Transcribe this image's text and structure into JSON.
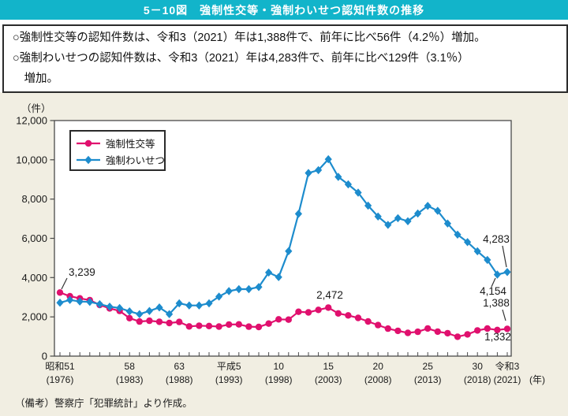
{
  "title": "5－10図　強制性交等・強制わいせつ認知件数の推移",
  "summary": {
    "line1": "○強制性交等の認知件数は、令和3（2021）年は1,388件で、前年に比べ56件（4.2％）増加。",
    "line2": "○強制わいせつの認知件数は、令和3（2021）年は4,283件で、前年に比べ129件（3.1％）",
    "line3": "増加。"
  },
  "note": "（備考）警察庁「犯罪統計」より作成。",
  "colors": {
    "titlebar_bg": "#12b4ca",
    "page_bg": "#f1eee2",
    "plot_bg": "#ffffff",
    "frame": "#4a4a4a",
    "pink": "#e0106e",
    "blue": "#1d8ccd",
    "text": "#1a1a1a"
  },
  "chart_data": {
    "type": "line",
    "title": "強制性交等・強制わいせつ認知件数の推移",
    "unit_label": "（件）",
    "year_unit": "(年)",
    "grid": false,
    "legend_position": "top-left",
    "ylim": [
      0,
      12000
    ],
    "ytick_step": 2000,
    "y_ticks": [
      "0",
      "2,000",
      "4,000",
      "6,000",
      "8,000",
      "10,000",
      "12,000"
    ],
    "x": [
      1976,
      1977,
      1978,
      1979,
      1980,
      1981,
      1982,
      1983,
      1984,
      1985,
      1986,
      1987,
      1988,
      1989,
      1990,
      1991,
      1992,
      1993,
      1994,
      1995,
      1996,
      1997,
      1998,
      1999,
      2000,
      2001,
      2002,
      2003,
      2004,
      2005,
      2006,
      2007,
      2008,
      2009,
      2010,
      2011,
      2012,
      2013,
      2014,
      2015,
      2016,
      2017,
      2018,
      2019,
      2020,
      2021
    ],
    "x_axis_labels": [
      {
        "top": "昭和51",
        "bottom": "(1976)",
        "year": 1976
      },
      {
        "top": "58",
        "bottom": "(1983)",
        "year": 1983
      },
      {
        "top": "63",
        "bottom": "(1988)",
        "year": 1988
      },
      {
        "top": "平成5",
        "bottom": "(1993)",
        "year": 1993
      },
      {
        "top": "10",
        "bottom": "(1998)",
        "year": 1998
      },
      {
        "top": "15",
        "bottom": "(2003)",
        "year": 2003
      },
      {
        "top": "20",
        "bottom": "(2008)",
        "year": 2008
      },
      {
        "top": "25",
        "bottom": "(2013)",
        "year": 2013
      },
      {
        "top": "30",
        "bottom": "(2018)",
        "year": 2018
      },
      {
        "top": "令和3",
        "bottom": "(2021)",
        "year": 2021
      }
    ],
    "series": [
      {
        "name": "強制性交等",
        "color": "#e0106e",
        "marker": "circle",
        "values": [
          3239,
          3050,
          2940,
          2855,
          2610,
          2434,
          2303,
          1936,
          1762,
          1802,
          1750,
          1687,
          1741,
          1513,
          1548,
          1532,
          1504,
          1611,
          1616,
          1500,
          1483,
          1657,
          1873,
          1857,
          2260,
          2228,
          2357,
          2472,
          2176,
          2076,
          1948,
          1766,
          1582,
          1402,
          1289,
          1185,
          1240,
          1409,
          1250,
          1167,
          989,
          1109,
          1307,
          1405,
          1332,
          1388
        ]
      },
      {
        "name": "強制わいせつ",
        "color": "#1d8ccd",
        "marker": "diamond",
        "values": [
          2720,
          2860,
          2780,
          2760,
          2645,
          2520,
          2450,
          2280,
          2140,
          2300,
          2480,
          2140,
          2690,
          2580,
          2580,
          2690,
          3035,
          3310,
          3410,
          3410,
          3520,
          4260,
          4025,
          5346,
          7250,
          9326,
          9476,
          10029,
          9132,
          8751,
          8326,
          7664,
          7111,
          6688,
          7027,
          6870,
          7263,
          7654,
          7400,
          6755,
          6188,
          5809,
          5340,
          4900,
          4154,
          4283
        ]
      }
    ],
    "annotations": [
      {
        "text": "3,239",
        "x": 87,
        "y": 350,
        "anchor": "start",
        "line": [
          85,
          353,
          78,
          367
        ]
      },
      {
        "text": "2,472",
        "x": 418,
        "y": 379,
        "anchor": "middle",
        "line": null
      },
      {
        "text": "4,283",
        "x": 629,
        "y": 308,
        "anchor": "middle",
        "line": [
          637,
          312,
          642,
          339
        ]
      },
      {
        "text": "4,154",
        "x": 625,
        "y": 374,
        "anchor": "middle",
        "line": [
          623,
          364,
          628,
          353
        ]
      },
      {
        "text": "1,388",
        "x": 629,
        "y": 389,
        "anchor": "middle",
        "line": [
          637,
          393,
          641,
          407
        ]
      },
      {
        "text": "1,332",
        "x": 631,
        "y": 432,
        "anchor": "middle",
        "line": null
      }
    ]
  }
}
